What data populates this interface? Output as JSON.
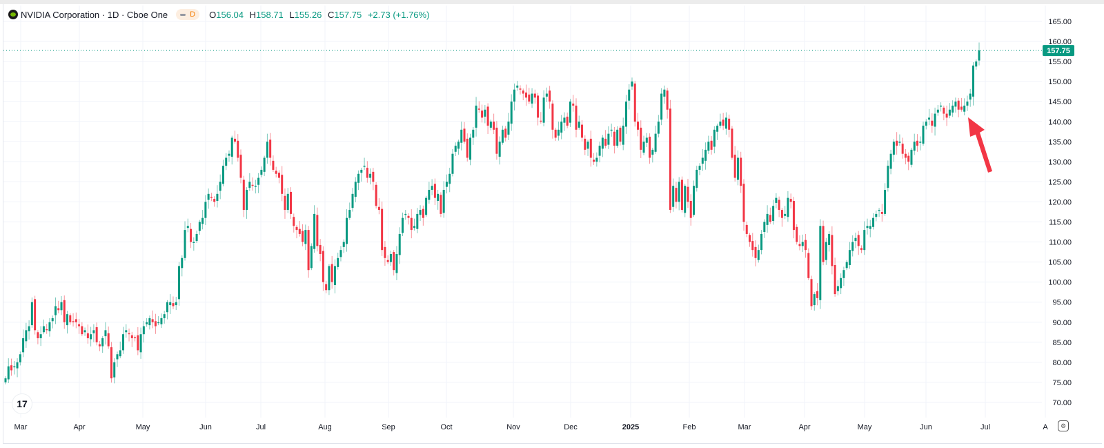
{
  "header": {
    "symbol_title": "NVIDIA Corporation · 1D · Cboe One",
    "interval_badge": "D",
    "ohlc": {
      "o_label": "O",
      "o": "156.04",
      "h_label": "H",
      "h": "158.71",
      "l_label": "L",
      "l": "155.26",
      "c_label": "C",
      "c": "157.75",
      "change": "+2.73 (+1.76%)"
    }
  },
  "branding": {
    "logo_text": "17"
  },
  "colors": {
    "up": "#089981",
    "down": "#f23645",
    "grid": "#f0f3fa",
    "arrow": "#f23645",
    "last_price_tag": "#089981"
  },
  "icons": {
    "settings": "gear-icon",
    "symbol_logo": "nvidia-logo-icon",
    "annotation": "arrow-icon"
  },
  "chart_data": {
    "type": "candlestick",
    "title": "NVIDIA Corporation · 1D · Cboe One",
    "ylim": [
      66,
      167
    ],
    "y_ticks": [
      "165.00",
      "160.00",
      "155.00",
      "150.00",
      "145.00",
      "140.00",
      "135.00",
      "130.00",
      "125.00",
      "120.00",
      "115.00",
      "110.00",
      "105.00",
      "100.00",
      "95.00",
      "90.00",
      "85.00",
      "80.00",
      "75.00",
      "70.00"
    ],
    "x_ticks": [
      "Mar",
      "Apr",
      "May",
      "Jun",
      "Jul",
      "Aug",
      "Sep",
      "Oct",
      "Nov",
      "Dec",
      "2025",
      "Feb",
      "Mar",
      "Apr",
      "May",
      "Jun",
      "Jul",
      "A"
    ],
    "last_price": "157.75",
    "grid": true,
    "annotation": "red arrow pointing at consolidation before breakout (late Jun 2025)",
    "close": [
      76,
      79,
      78,
      79,
      80,
      82,
      86,
      88,
      89,
      95,
      88,
      86,
      87,
      89,
      88,
      90,
      91,
      94,
      93,
      95,
      90,
      92,
      90,
      90,
      90,
      89,
      87,
      88,
      86,
      87,
      88,
      85,
      84,
      86,
      88,
      84,
      76,
      80,
      82,
      83,
      87,
      88,
      87,
      86,
      86,
      83,
      87,
      89,
      90,
      91,
      90,
      89,
      90,
      91,
      92,
      95,
      95,
      94,
      95,
      104,
      106,
      113,
      114,
      110,
      110,
      112,
      115,
      116,
      120,
      122,
      121,
      120,
      122,
      125,
      129,
      131,
      132,
      136,
      135,
      131,
      126,
      118,
      123,
      125,
      124,
      124,
      126,
      128,
      131,
      135,
      131,
      128,
      127,
      126,
      122,
      118,
      122,
      117,
      114,
      113,
      112,
      110,
      113,
      103,
      109,
      117,
      109,
      107,
      100,
      98,
      104,
      100,
      104,
      106,
      108,
      110,
      116,
      118,
      122,
      125,
      127,
      128,
      129,
      126,
      127,
      125,
      119,
      118,
      108,
      106,
      105,
      107,
      103,
      107,
      112,
      116,
      117,
      116,
      113,
      114,
      117,
      118,
      116,
      121,
      123,
      124,
      121,
      122,
      117,
      123,
      125,
      127,
      132,
      134,
      135,
      138,
      135,
      131,
      136,
      138,
      144,
      143,
      141,
      143,
      139,
      140,
      138,
      132,
      135,
      138,
      136,
      140,
      145,
      148,
      149,
      148,
      147,
      146,
      145,
      147,
      146,
      141,
      140,
      146,
      147,
      145,
      138,
      136,
      138,
      140,
      141,
      139,
      145,
      144,
      138,
      140,
      136,
      133,
      135,
      131,
      130,
      131,
      134,
      136,
      134,
      137,
      138,
      134,
      138,
      135,
      139,
      145,
      148,
      150,
      140,
      138,
      133,
      135,
      136,
      131,
      133,
      137,
      140,
      147,
      148,
      143,
      118,
      124,
      120,
      125,
      118,
      124,
      120,
      116,
      124,
      128,
      129,
      131,
      133,
      135,
      133,
      138,
      139,
      140,
      139,
      141,
      138,
      131,
      126,
      131,
      124,
      115,
      112,
      110,
      108,
      106,
      108,
      112,
      115,
      117,
      115,
      119,
      121,
      118,
      116,
      117,
      121,
      120,
      113,
      110,
      109,
      110,
      108,
      101,
      94,
      97,
      96,
      114,
      105,
      110,
      112,
      104,
      97,
      99,
      101,
      103,
      105,
      108,
      110,
      111,
      109,
      108,
      113,
      114,
      114,
      116,
      117,
      118,
      117,
      123,
      129,
      132,
      135,
      134,
      135,
      132,
      131,
      130,
      133,
      135,
      134,
      135,
      139,
      140,
      141,
      139,
      142,
      143,
      144,
      142,
      141,
      143,
      144,
      145,
      143,
      143,
      144,
      145,
      147,
      154,
      155,
      157.75
    ]
  }
}
